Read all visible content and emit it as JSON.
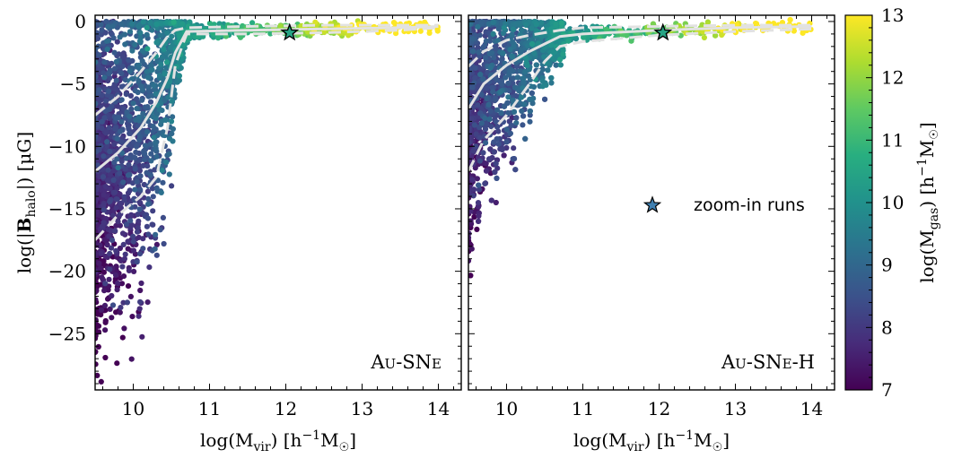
{
  "chart_data": {
    "type": "scatter",
    "colorbar": {
      "label_main": "log(M",
      "label_sub": "gas",
      "label_tail": ") [h",
      "label_exp": "−1",
      "label_end": "M",
      "label_sun": "☉",
      "label_close": "]",
      "range": [
        7,
        13
      ],
      "ticks": [
        "7",
        "8",
        "9",
        "10",
        "11",
        "12",
        "13"
      ],
      "colormap": [
        "#440154",
        "#472c7a",
        "#3b528b",
        "#2c728e",
        "#21918c",
        "#28ae80",
        "#5ec962",
        "#addc30",
        "#fde725"
      ]
    },
    "x_axis": {
      "label_main": "log(M",
      "label_sub": "vir",
      "label_tail": ") [h",
      "label_exp": "−1",
      "label_end": "M",
      "label_sun": "☉",
      "label_close": "]",
      "range": [
        9.5,
        14.3
      ],
      "ticks": [
        "10",
        "11",
        "12",
        "13",
        "14"
      ]
    },
    "y_axis": {
      "label_pre": "log(|",
      "label_bold": "B",
      "label_sub": "halo",
      "label_post": "|) [μG]",
      "range": [
        -29.5,
        0.5
      ],
      "ticks": [
        "0",
        "−5",
        "−10",
        "−15",
        "−20",
        "−25"
      ]
    },
    "legend": {
      "label": "zoom-in runs",
      "location": "center-right of right panel"
    },
    "panels": [
      {
        "name": "Au-SNe",
        "label_a": "A",
        "label_b": "U",
        "label_c": "-SN",
        "label_d": "E",
        "label_e": "",
        "median": {
          "x": [
            9.5,
            9.8,
            10.1,
            10.3,
            10.45,
            10.55,
            10.7,
            11.5,
            12.5,
            13.5,
            14.0
          ],
          "y": [
            -12,
            -10.5,
            -8.5,
            -6.5,
            -4.5,
            -2.5,
            -0.8,
            -0.7,
            -0.6,
            -0.5,
            -0.4
          ]
        },
        "p16": {
          "x": [
            9.5,
            9.8,
            10.1,
            10.3,
            10.45,
            10.55,
            10.7,
            11.5,
            12.5,
            13.5,
            14.0
          ],
          "y": [
            -17.5,
            -15.5,
            -14,
            -12.5,
            -8.5,
            -3.5,
            -1.0,
            -1.0,
            -0.9,
            -0.7,
            -0.5
          ]
        },
        "p84": {
          "x": [
            9.5,
            9.8,
            10.1,
            10.3,
            10.45,
            10.55,
            10.7,
            11.5,
            12.5,
            13.5,
            14.0
          ],
          "y": [
            -7.5,
            -6,
            -4,
            -2.5,
            -1.2,
            -0.7,
            -0.5,
            -0.4,
            -0.3,
            -0.3,
            -0.3
          ]
        },
        "zoom_run": {
          "x": 12.05,
          "y": -0.9,
          "cgas": 10.5
        }
      },
      {
        "name": "Au-SNe-H",
        "label_a": "A",
        "label_b": "U",
        "label_c": "-SN",
        "label_d": "E",
        "label_e": "-H",
        "median": {
          "x": [
            9.5,
            9.7,
            10.0,
            10.3,
            10.5,
            10.7,
            11.0,
            12.0,
            13.0,
            14.0
          ],
          "y": [
            -7,
            -5,
            -3.5,
            -2.4,
            -1.8,
            -1.2,
            -1.0,
            -0.7,
            -0.5,
            -0.4
          ]
        },
        "p16": {
          "x": [
            9.5,
            9.7,
            10.0,
            10.3,
            10.5,
            10.7,
            11.0,
            12.0,
            13.0,
            14.0
          ],
          "y": [
            -12,
            -9.5,
            -7.5,
            -5,
            -3.2,
            -2.0,
            -1.6,
            -1.1,
            -0.8,
            -0.6
          ]
        },
        "p84": {
          "x": [
            9.5,
            9.7,
            10.0,
            10.3,
            10.5,
            10.7,
            11.0,
            12.0,
            13.0,
            14.0
          ],
          "y": [
            -3.6,
            -2.4,
            -1.5,
            -1.1,
            -0.9,
            -0.7,
            -0.5,
            -0.4,
            -0.3,
            -0.3
          ]
        },
        "zoom_run": {
          "x": 12.05,
          "y": -0.9,
          "cgas": 10.5
        }
      }
    ]
  },
  "colors": {
    "axis": "#000000",
    "median_line": "#e2e2e2",
    "star_fill": "#2aa58a",
    "legend_star_fill": "#3f7fb0",
    "star_edge": "#000000"
  }
}
